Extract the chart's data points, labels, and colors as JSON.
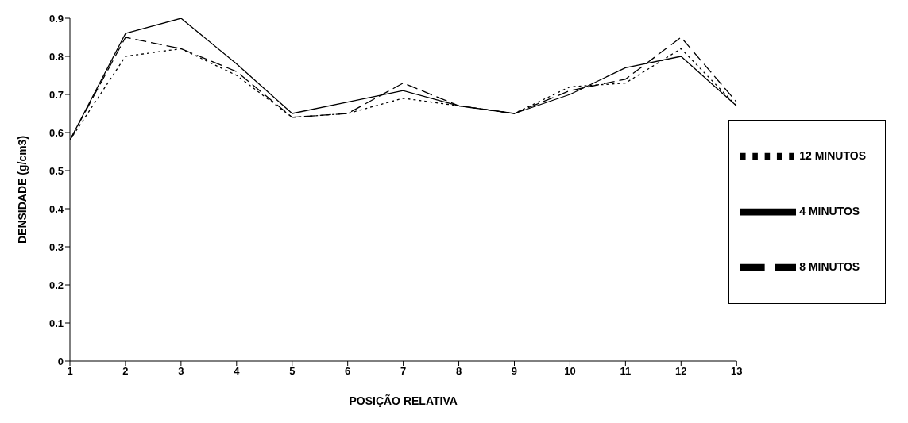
{
  "chart_data": {
    "type": "line",
    "xlabel": "POSIÇÃO RELATIVA",
    "ylabel": "DENSIDADE (g/cm3)",
    "x": [
      1,
      2,
      3,
      4,
      5,
      6,
      7,
      8,
      9,
      10,
      11,
      12,
      13
    ],
    "xlim": [
      1,
      13
    ],
    "xticks": [
      1,
      2,
      3,
      4,
      5,
      6,
      7,
      8,
      9,
      10,
      11,
      12,
      13
    ],
    "ylim": [
      0,
      0.9
    ],
    "yticks": [
      0,
      0.1,
      0.2,
      0.3,
      0.4,
      0.5,
      0.6,
      0.7,
      0.8,
      0.9
    ],
    "grid": false,
    "legend": "right",
    "marker": "none",
    "series": [
      {
        "name": "4 MINUTOS",
        "color": "#000000",
        "line_style": "solid",
        "values": [
          0.58,
          0.86,
          0.9,
          0.78,
          0.65,
          0.68,
          0.71,
          0.67,
          0.65,
          0.7,
          0.77,
          0.8,
          0.67
        ]
      },
      {
        "name": "8 MINUTOS",
        "color": "#000000",
        "line_style": "dashed",
        "values": [
          0.58,
          0.85,
          0.82,
          0.76,
          0.64,
          0.65,
          0.73,
          0.67,
          0.65,
          0.71,
          0.74,
          0.85,
          0.68
        ]
      },
      {
        "name": "12 MINUTOS",
        "color": "#000000",
        "line_style": "dotted",
        "values": [
          0.58,
          0.8,
          0.82,
          0.75,
          0.64,
          0.65,
          0.69,
          0.67,
          0.65,
          0.72,
          0.73,
          0.82,
          0.67
        ]
      }
    ]
  }
}
